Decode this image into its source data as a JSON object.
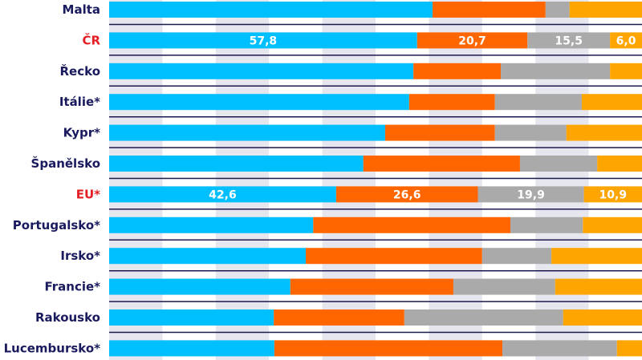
{
  "chart_data": {
    "type": "bar",
    "orientation": "horizontal",
    "stacked": true,
    "normalized_percent": true,
    "xlim": [
      0,
      100
    ],
    "grid": "alternating vertical bands every 10",
    "categories": [
      "Malta",
      "ČR",
      "Řecko",
      "Itálie*",
      "Kypr*",
      "Španělsko",
      "EU*",
      "Portugalsko*",
      "Irsko*",
      "Francie*",
      "Rakousko",
      "Lucembursko*"
    ],
    "highlighted": [
      "ČR",
      "EU*"
    ],
    "series": [
      {
        "color": "#00bfff",
        "values": [
          60.7,
          57.8,
          57.1,
          56.3,
          51.8,
          47.7,
          42.6,
          38.3,
          36.9,
          34.0,
          30.9,
          31.0
        ]
      },
      {
        "color": "#ff6600",
        "values": [
          21.2,
          20.7,
          16.4,
          16.1,
          20.6,
          29.4,
          26.6,
          37.0,
          33.1,
          30.6,
          24.5,
          42.8
        ]
      },
      {
        "color": "#aaaaaa",
        "values": [
          4.5,
          15.5,
          20.5,
          16.3,
          13.4,
          14.5,
          19.9,
          13.6,
          13.0,
          19.1,
          29.8,
          21.5
        ]
      },
      {
        "color": "#ffa500",
        "values": [
          13.6,
          6.0,
          6.0,
          11.3,
          14.2,
          8.4,
          10.9,
          11.1,
          17.0,
          16.3,
          14.8,
          4.7
        ]
      }
    ],
    "data_labels": {
      "ČR": [
        "57,8",
        "20,7",
        "15,5",
        "6,0"
      ],
      "EU*": [
        "42,6",
        "26,6",
        "19,9",
        "10,9"
      ]
    },
    "label_color": "#1a1a5e",
    "highlight_color": "#e31e24"
  }
}
